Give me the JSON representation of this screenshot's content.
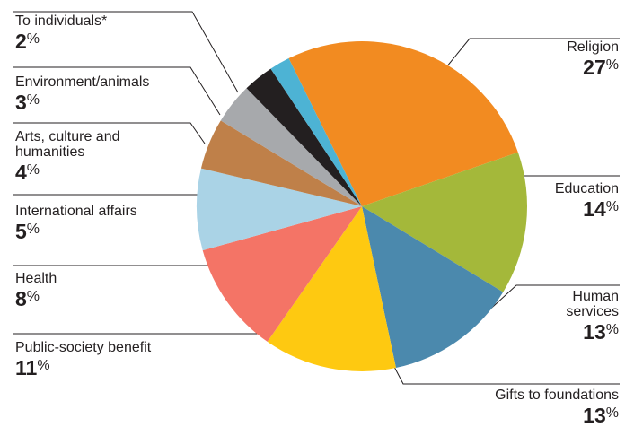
{
  "chart_data": {
    "type": "pie",
    "value_suffix": "%",
    "slices": [
      {
        "label": "Religion",
        "value": 27,
        "color": "#f28b21"
      },
      {
        "label": "Education",
        "value": 14,
        "color": "#a4b83a"
      },
      {
        "label": "Human services",
        "value": 13,
        "color": "#4b89ad"
      },
      {
        "label": "Gifts to foundations",
        "value": 13,
        "color": "#fec911"
      },
      {
        "label": "Public-society benefit",
        "value": 11,
        "color": "#f47466"
      },
      {
        "label": "Health",
        "value": 8,
        "color": "#aad3e6"
      },
      {
        "label": "International affairs",
        "value": 5,
        "color": "#bf8049"
      },
      {
        "label": "Arts, culture and humanities",
        "value": 4,
        "color": "#a7a9ac"
      },
      {
        "label": "Environment/animals",
        "value": 3,
        "color": "#231f20"
      },
      {
        "label": "To individuals*",
        "value": 2,
        "color": "#4db3d4"
      }
    ]
  }
}
